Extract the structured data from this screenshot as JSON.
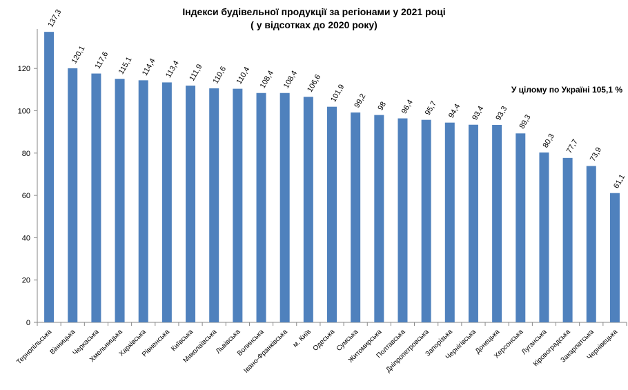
{
  "title_line1": "Індекси будівельної продукції за регіонами  у  2021 році",
  "title_line2": "( у відсотках до 2020 року)",
  "note": "У цілому по Україні  105,1 %",
  "colors": {
    "bar": "#4f81bd",
    "axis": "#868686"
  },
  "chart_data": {
    "type": "bar",
    "title": "Індекси будівельної продукції за регіонами  у  2021 році ( у відсотках до 2020 року)",
    "categories": [
      "Тернопільська",
      "Вінницька",
      "Черкаська",
      "Хмельницька",
      "Харківська",
      "Рівненська",
      "Київська",
      "Миколаївська",
      "Львівська",
      "Волинська",
      "Івано-Франківська",
      "м. Київ",
      "Одеська",
      "Сумська",
      "Житомирська",
      "Полтавська",
      "Дніпропетровська",
      "Запорізька",
      "Чернігівська",
      "Донецька",
      "Херсонська",
      "Луганська",
      "Кіровоградська",
      "Закарпатська",
      "Чернівецька"
    ],
    "values": [
      137.3,
      120.1,
      117.6,
      115.1,
      114.4,
      113.4,
      111.9,
      110.6,
      110.4,
      108.4,
      108.4,
      106.6,
      101.9,
      99.2,
      98,
      96.4,
      95.7,
      94.4,
      93.4,
      93.3,
      89.3,
      80.3,
      77.7,
      73.9,
      61.1
    ],
    "value_labels": [
      "137,3",
      "120,1",
      "117,6",
      "115,1",
      "114,4",
      "113,4",
      "111,9",
      "110,6",
      "110,4",
      "108,4",
      "108,4",
      "106,6",
      "101,9",
      "99,2",
      "98",
      "96,4",
      "95,7",
      "94,4",
      "93,4",
      "93,3",
      "89,3",
      "80,3",
      "77,7",
      "73,9",
      "61,1"
    ],
    "yticks": [
      "0",
      "20",
      "40",
      "60",
      "80",
      "100",
      "120"
    ],
    "ylim": [
      0,
      138
    ],
    "xlabel": "",
    "ylabel": "",
    "grid": false,
    "legend": "none"
  }
}
